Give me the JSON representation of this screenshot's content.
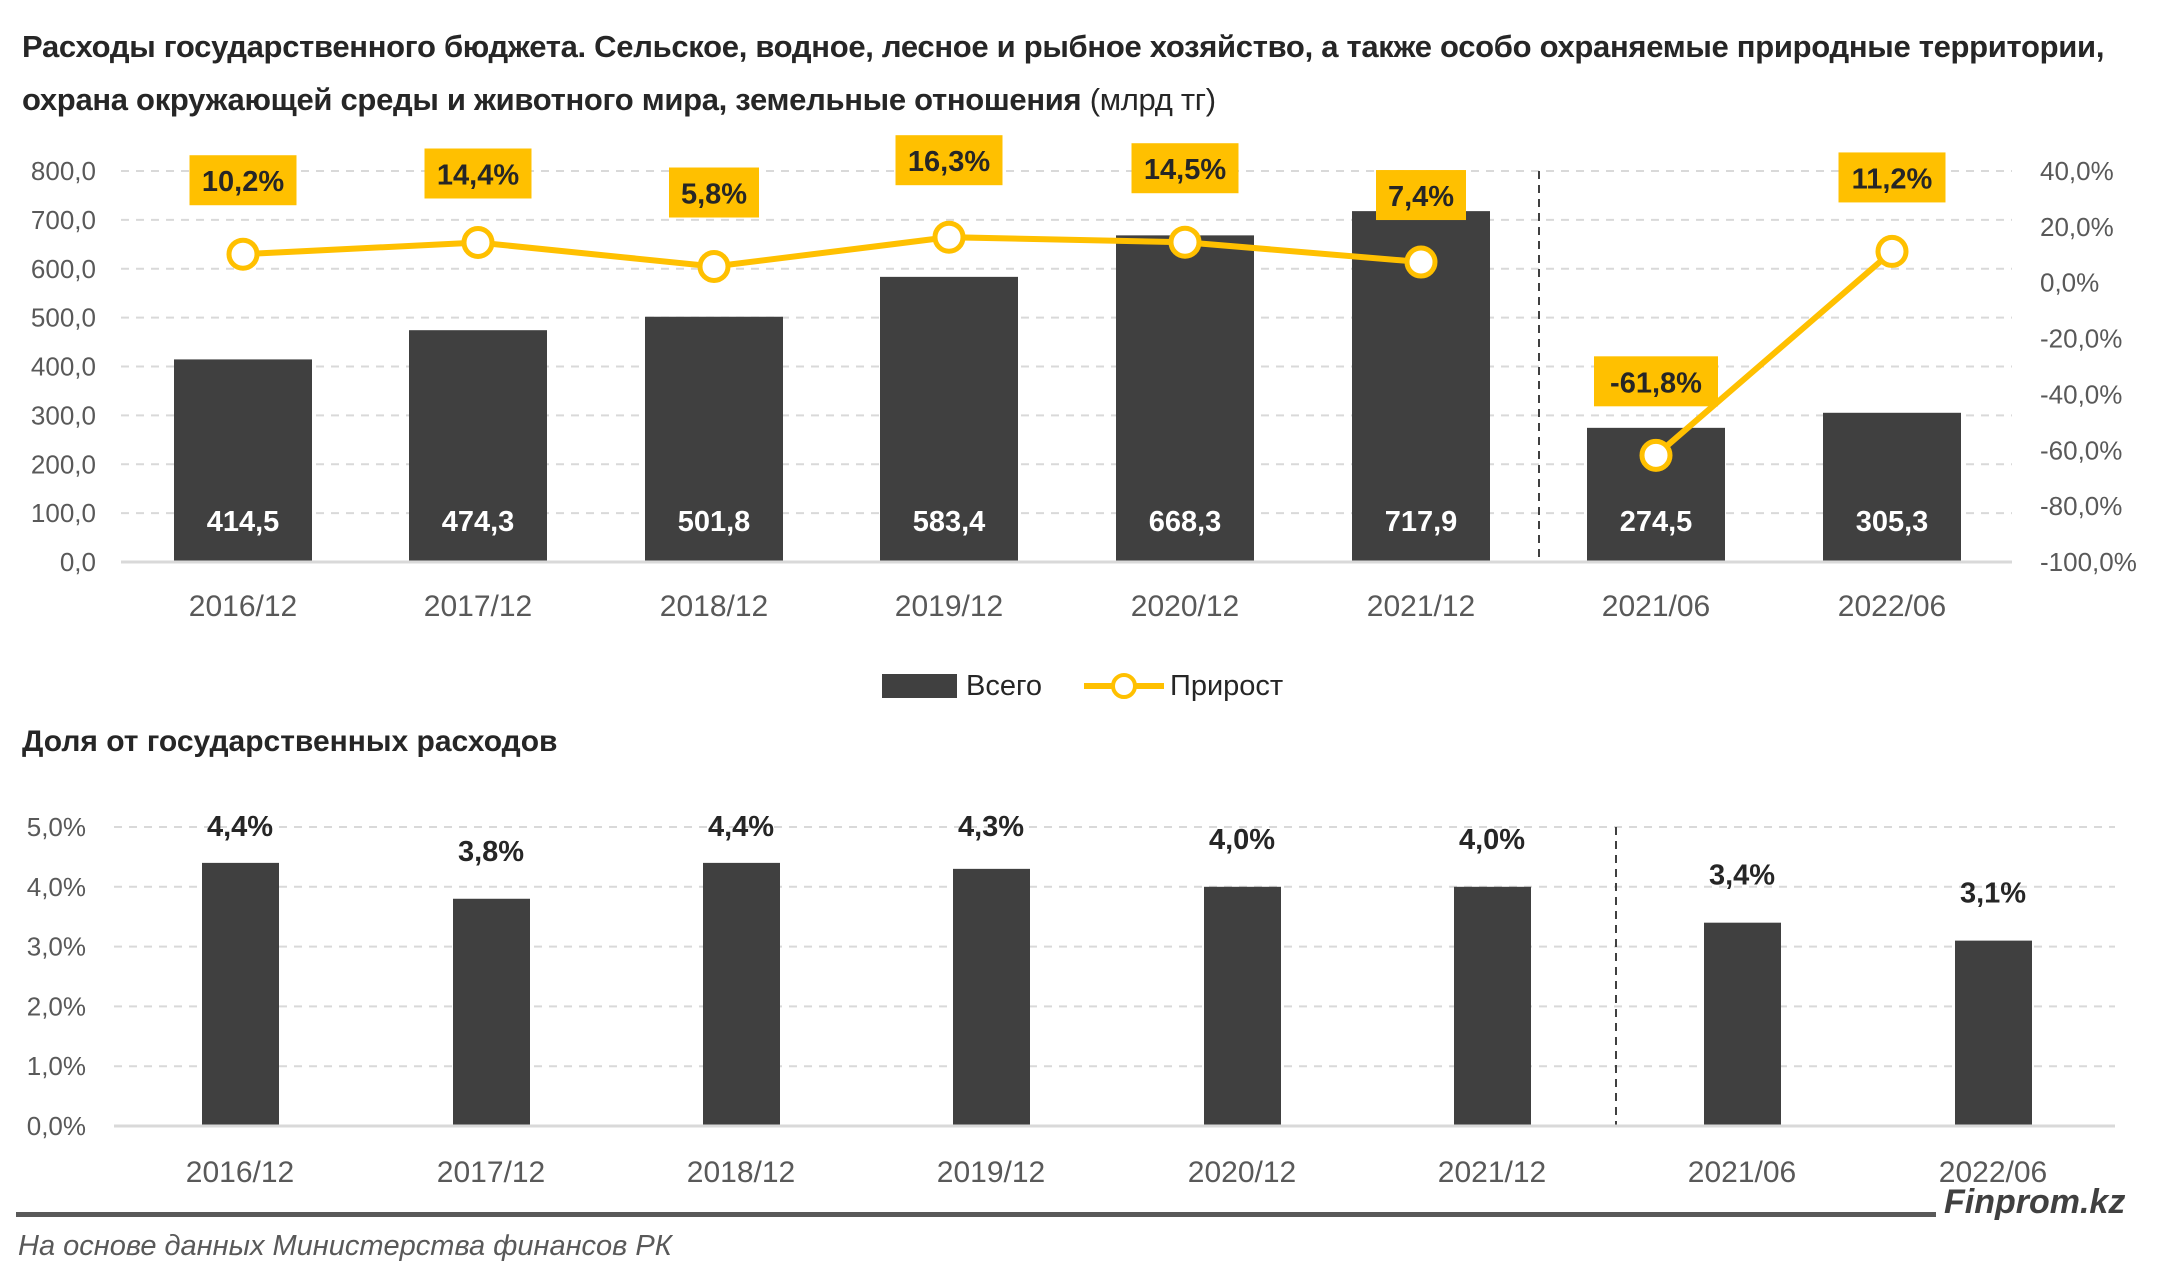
{
  "title": "Расходы государственного бюджета. Сельское, водное, лесное и рыбное хозяйство, а также особо охраняемые природные территории, охрана окружающей среды и животного мира, земельные отношения",
  "title_unit": "(млрд тг)",
  "subtitle": "Доля от государственных расходов",
  "brand": "Finprom.kz",
  "source": "На основе данных Министерства финансов РК",
  "colors": {
    "bar": "#404040",
    "line": "#FFC000",
    "grid": "#D9D9D9"
  },
  "chart_data": [
    {
      "type": "bar+line",
      "categories": [
        "2016/12",
        "2017/12",
        "2018/12",
        "2019/12",
        "2020/12",
        "2021/12",
        "2021/06",
        "2022/06"
      ],
      "series": [
        {
          "name": "Всего",
          "type": "bar",
          "axis": "left",
          "values": [
            414.5,
            474.3,
            501.8,
            583.4,
            668.3,
            717.9,
            274.5,
            305.3
          ],
          "labels": [
            "414,5",
            "474,3",
            "501,8",
            "583,4",
            "668,3",
            "717,9",
            "274,5",
            "305,3"
          ]
        },
        {
          "name": "Прирост",
          "type": "line",
          "axis": "right",
          "values": [
            10.2,
            14.4,
            5.8,
            16.3,
            14.5,
            7.4,
            -61.8,
            11.2
          ],
          "labels": [
            "10,2%",
            "14,4%",
            "5,8%",
            "16,3%",
            "14,5%",
            "7,4%",
            "-61,8%",
            "11,2%"
          ]
        }
      ],
      "ylim": [
        0,
        800
      ],
      "y_ticks": [
        "0,0",
        "100,0",
        "200,0",
        "300,0",
        "400,0",
        "500,0",
        "600,0",
        "700,0",
        "800,0"
      ],
      "y2lim": [
        -100,
        40
      ],
      "y2_ticks": [
        "-100,0%",
        "-80,0%",
        "-60,0%",
        "-40,0%",
        "-20,0%",
        "0,0%",
        "20,0%",
        "40,0%"
      ],
      "grid": true,
      "legend": "bottom"
    },
    {
      "type": "bar",
      "categories": [
        "2016/12",
        "2017/12",
        "2018/12",
        "2019/12",
        "2020/12",
        "2021/12",
        "2021/06",
        "2022/06"
      ],
      "values": [
        4.4,
        3.8,
        4.4,
        4.3,
        4.0,
        4.0,
        3.4,
        3.1
      ],
      "labels": [
        "4,4%",
        "3,8%",
        "4,4%",
        "4,3%",
        "4,0%",
        "4,0%",
        "3,4%",
        "3,1%"
      ],
      "ylim": [
        0,
        5
      ],
      "y_ticks": [
        "0,0%",
        "1,0%",
        "2,0%",
        "3,0%",
        "4,0%",
        "5,0%"
      ],
      "grid": true
    }
  ]
}
